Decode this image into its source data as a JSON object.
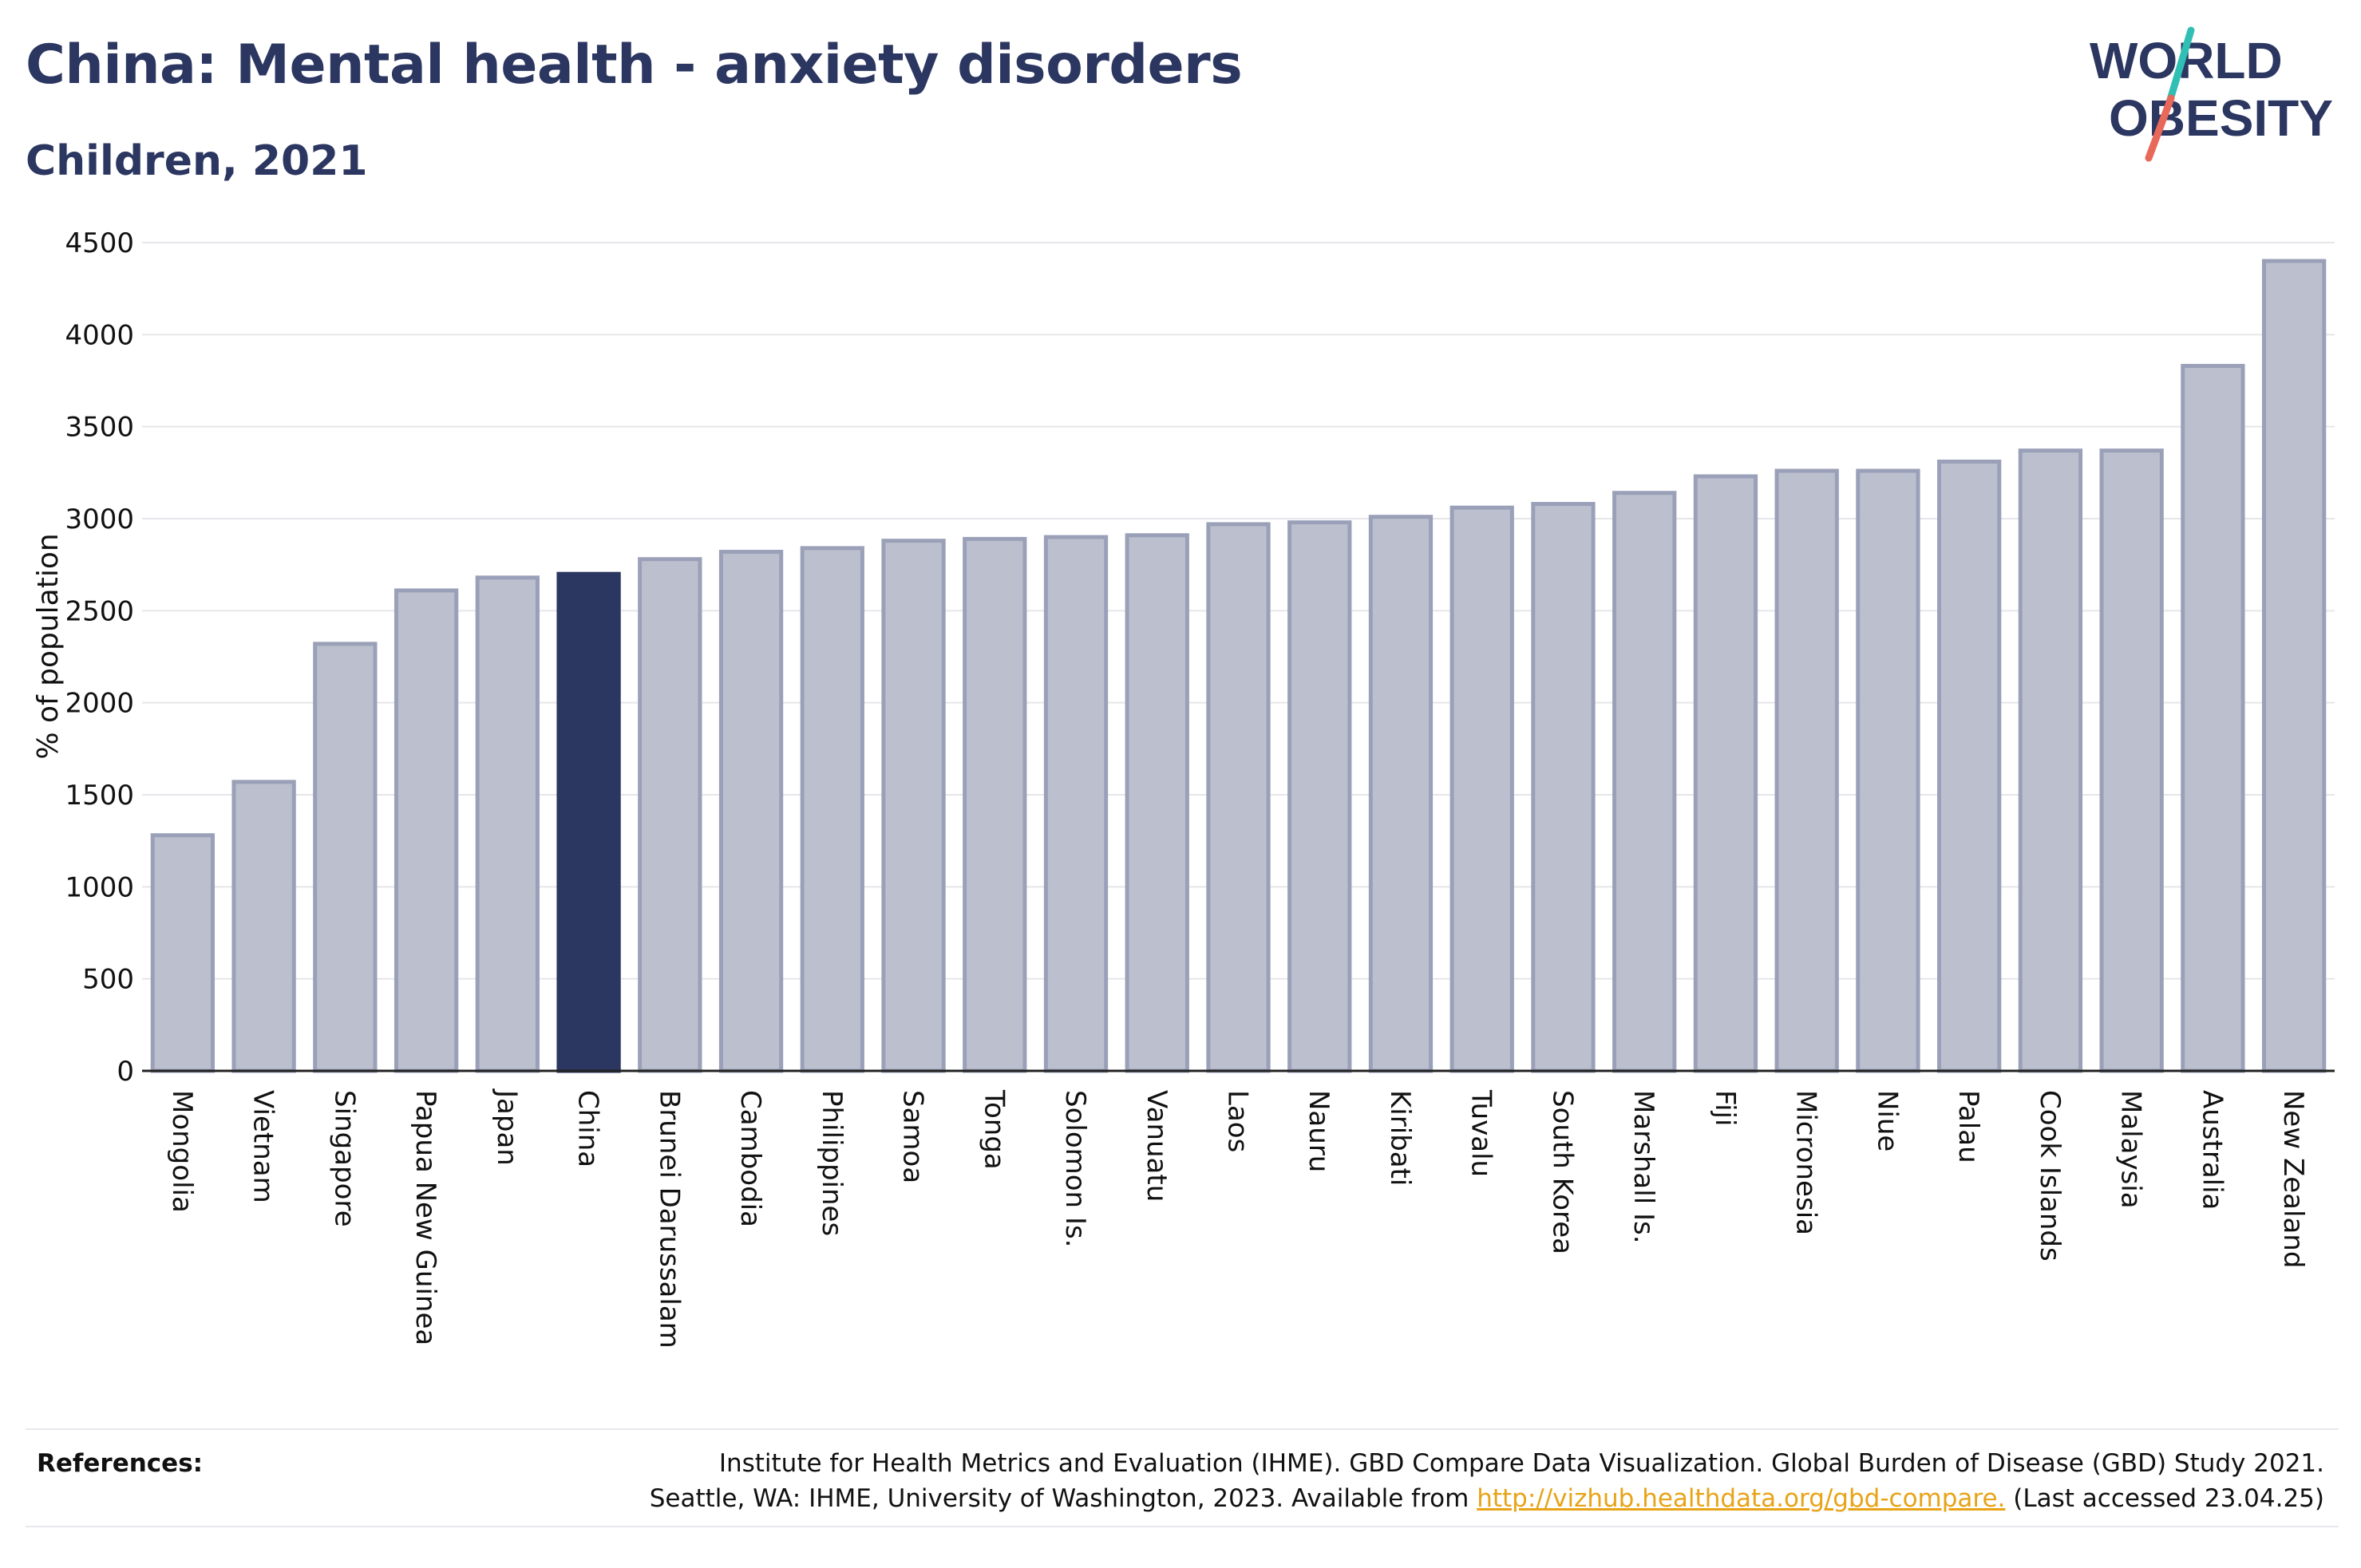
{
  "header": {
    "title": "China: Mental health - anxiety disorders",
    "subtitle": "Children, 2021"
  },
  "logo": {
    "line1": "WORLD",
    "line2": "OBESITY",
    "slash_colors": [
      "#2fbfb4",
      "#e8685a"
    ],
    "text_color": "#2b3661"
  },
  "colors": {
    "bar_default": "#bcc0ce",
    "bar_default_stroke": "#9aa0b8",
    "bar_highlight": "#2b3661",
    "grid": "#e6e6ea",
    "axis": "#222222"
  },
  "chart_data": {
    "type": "bar",
    "title": "China: Mental health - anxiety disorders",
    "subtitle": "Children, 2021",
    "xlabel": "",
    "ylabel": "% of population",
    "ylim": [
      0,
      4500
    ],
    "yticks": [
      0,
      500,
      1000,
      1500,
      2000,
      2500,
      3000,
      3500,
      4000,
      4500
    ],
    "grid": true,
    "legend": "none",
    "highlight": "China",
    "categories": [
      "Mongolia",
      "Vietnam",
      "Singapore",
      "Papua New Guinea",
      "Japan",
      "China",
      "Brunei Darussalam",
      "Cambodia",
      "Philippines",
      "Samoa",
      "Tonga",
      "Solomon Is.",
      "Vanuatu",
      "Laos",
      "Nauru",
      "Kiribati",
      "Tuvalu",
      "South Korea",
      "Marshall Is.",
      "Fiji",
      "Micronesia",
      "Niue",
      "Palau",
      "Cook Islands",
      "Malaysia",
      "Australia",
      "New Zealand"
    ],
    "values": [
      1280,
      1570,
      2320,
      2610,
      2680,
      2700,
      2780,
      2820,
      2840,
      2880,
      2890,
      2900,
      2910,
      2970,
      2980,
      3010,
      3060,
      3080,
      3140,
      3230,
      3260,
      3260,
      3310,
      3370,
      3370,
      3830,
      4400
    ]
  },
  "references": {
    "label": "References:",
    "line1": "Institute for Health Metrics and Evaluation (IHME). GBD Compare Data Visualization. Global Burden of Disease (GBD) Study 2021.",
    "line2_prefix": "Seattle, WA: IHME, University of Washington, 2023. Available from ",
    "link": "http://vizhub.healthdata.org/gbd-compare.",
    "line2_suffix": " (Last accessed 23.04.25)"
  }
}
